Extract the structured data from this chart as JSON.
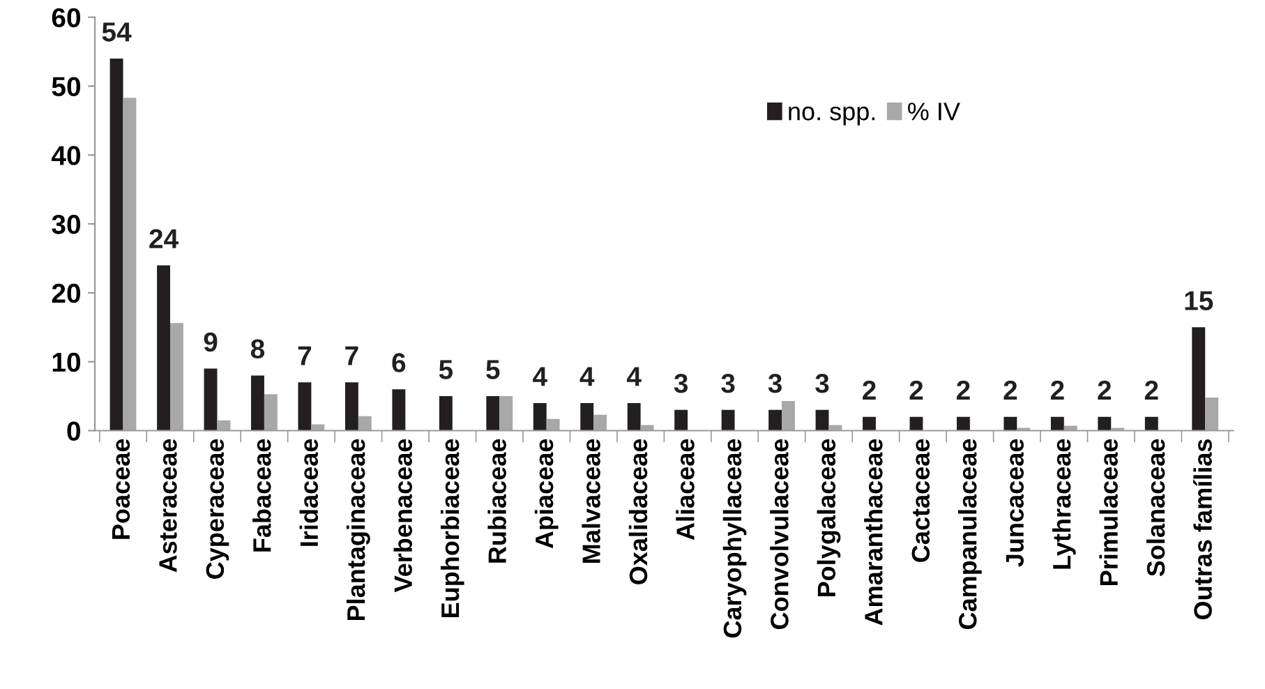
{
  "chart_data": {
    "type": "bar",
    "categories": [
      "Poaceae",
      "Asteraceae",
      "Cyperaceae",
      "Fabaceae",
      "Iridaceae",
      "Plantaginaceae",
      "Verbenaceae",
      "Euphorbiaceae",
      "Rubiaceae",
      "Apiaceae",
      "Malvaceae",
      "Oxalidaceae",
      "Aliaceae",
      "Caryophyllaceae",
      "Convolvulaceae",
      "Polygalaceae",
      "Amaranthaceae",
      "Cactaceae",
      "Campanulaceae",
      "Juncaceae",
      "Lythraceae",
      "Primulaceae",
      "Solanaceae",
      "Outras famílias"
    ],
    "series": [
      {
        "name": "no. spp.",
        "color": "#231f20",
        "values": [
          54,
          24,
          9,
          8,
          7,
          7,
          6,
          5,
          5,
          4,
          4,
          4,
          3,
          3,
          3,
          3,
          2,
          2,
          2,
          2,
          2,
          2,
          2,
          15
        ],
        "value_labels": [
          "54",
          "24",
          "9",
          "8",
          "7",
          "7",
          "6",
          "5",
          "5",
          "4",
          "4",
          "4",
          "3",
          "3",
          "3",
          "3",
          "2",
          "2",
          "2",
          "2",
          "2",
          "2",
          "2",
          "15"
        ]
      },
      {
        "name": "% IV",
        "color": "#a8a8a8",
        "values": [
          48.3,
          15.6,
          1.5,
          5.3,
          0.9,
          2.1,
          null,
          null,
          5,
          1.7,
          2.3,
          0.8,
          null,
          0,
          4.3,
          0.8,
          0,
          0,
          null,
          0.4,
          0.7,
          0.4,
          0,
          4.8
        ]
      }
    ],
    "ylim": [
      0,
      60
    ],
    "yticks": [
      0,
      10,
      20,
      30,
      40,
      50,
      60
    ],
    "grid": false,
    "legend": "top right"
  }
}
